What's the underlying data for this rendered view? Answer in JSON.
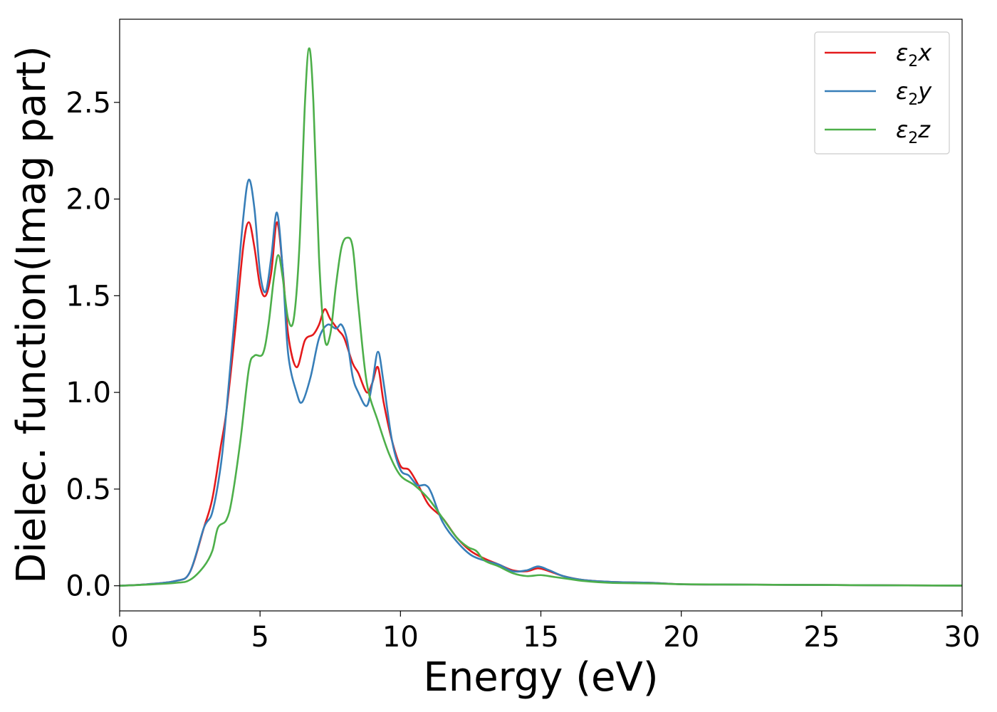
{
  "chart_data": {
    "type": "line",
    "xlabel": "Energy (eV)",
    "ylabel": "Dielec. function(Imag part)",
    "xlim": [
      0,
      30
    ],
    "ylim": [
      -0.13,
      2.93
    ],
    "xticks": [
      0,
      5,
      10,
      15,
      20,
      25,
      30
    ],
    "yticks": [
      0.0,
      0.5,
      1.0,
      1.5,
      2.0,
      2.5
    ],
    "xtick_labels": [
      "0",
      "5",
      "10",
      "15",
      "20",
      "25",
      "30"
    ],
    "ytick_labels": [
      "0.0",
      "0.5",
      "1.0",
      "1.5",
      "2.0",
      "2.5"
    ],
    "grid": false,
    "legend_position": "top-right",
    "series": [
      {
        "name": "ε2x",
        "legend": {
          "base": "ε",
          "sub": "2",
          "var": "x"
        },
        "color": "#e41a1c",
        "points": [
          [
            0,
            0
          ],
          [
            1,
            0.008
          ],
          [
            2,
            0.025
          ],
          [
            2.5,
            0.07
          ],
          [
            3,
            0.3
          ],
          [
            3.3,
            0.45
          ],
          [
            3.6,
            0.72
          ],
          [
            3.8,
            0.9
          ],
          [
            4.1,
            1.3
          ],
          [
            4.4,
            1.75
          ],
          [
            4.6,
            1.88
          ],
          [
            4.8,
            1.75
          ],
          [
            5.0,
            1.55
          ],
          [
            5.2,
            1.5
          ],
          [
            5.4,
            1.62
          ],
          [
            5.6,
            1.88
          ],
          [
            5.8,
            1.65
          ],
          [
            6.0,
            1.3
          ],
          [
            6.3,
            1.13
          ],
          [
            6.6,
            1.27
          ],
          [
            6.9,
            1.3
          ],
          [
            7.1,
            1.35
          ],
          [
            7.3,
            1.43
          ],
          [
            7.5,
            1.38
          ],
          [
            7.8,
            1.32
          ],
          [
            8.0,
            1.28
          ],
          [
            8.3,
            1.15
          ],
          [
            8.5,
            1.1
          ],
          [
            8.8,
            1.0
          ],
          [
            9.0,
            1.05
          ],
          [
            9.2,
            1.13
          ],
          [
            9.4,
            0.95
          ],
          [
            9.7,
            0.75
          ],
          [
            10.0,
            0.62
          ],
          [
            10.3,
            0.6
          ],
          [
            10.6,
            0.53
          ],
          [
            11.0,
            0.42
          ],
          [
            11.5,
            0.35
          ],
          [
            12.0,
            0.25
          ],
          [
            12.5,
            0.18
          ],
          [
            13.0,
            0.14
          ],
          [
            13.5,
            0.11
          ],
          [
            14.0,
            0.08
          ],
          [
            14.5,
            0.075
          ],
          [
            14.9,
            0.09
          ],
          [
            15.3,
            0.075
          ],
          [
            15.8,
            0.05
          ],
          [
            16.5,
            0.03
          ],
          [
            17.5,
            0.02
          ],
          [
            19,
            0.015
          ],
          [
            20,
            0.008
          ],
          [
            22,
            0.006
          ],
          [
            25,
            0.004
          ],
          [
            28,
            0.002
          ],
          [
            30,
            0.001
          ]
        ]
      },
      {
        "name": "ε2y",
        "legend": {
          "base": "ε",
          "sub": "2",
          "var": "y"
        },
        "color": "#377eb8",
        "points": [
          [
            0,
            0
          ],
          [
            1,
            0.008
          ],
          [
            2,
            0.025
          ],
          [
            2.5,
            0.07
          ],
          [
            3,
            0.3
          ],
          [
            3.3,
            0.38
          ],
          [
            3.6,
            0.62
          ],
          [
            3.8,
            0.9
          ],
          [
            4.1,
            1.4
          ],
          [
            4.4,
            1.9
          ],
          [
            4.6,
            2.1
          ],
          [
            4.8,
            1.95
          ],
          [
            5.0,
            1.62
          ],
          [
            5.2,
            1.52
          ],
          [
            5.4,
            1.7
          ],
          [
            5.6,
            1.93
          ],
          [
            5.8,
            1.65
          ],
          [
            6.0,
            1.2
          ],
          [
            6.3,
            1.0
          ],
          [
            6.5,
            0.95
          ],
          [
            6.8,
            1.08
          ],
          [
            7.1,
            1.28
          ],
          [
            7.4,
            1.35
          ],
          [
            7.7,
            1.33
          ],
          [
            7.9,
            1.35
          ],
          [
            8.1,
            1.27
          ],
          [
            8.3,
            1.08
          ],
          [
            8.5,
            1.0
          ],
          [
            8.8,
            0.93
          ],
          [
            9.0,
            1.05
          ],
          [
            9.2,
            1.21
          ],
          [
            9.4,
            1.05
          ],
          [
            9.7,
            0.75
          ],
          [
            10.0,
            0.6
          ],
          [
            10.3,
            0.57
          ],
          [
            10.6,
            0.52
          ],
          [
            10.9,
            0.52
          ],
          [
            11.1,
            0.48
          ],
          [
            11.5,
            0.33
          ],
          [
            12.0,
            0.23
          ],
          [
            12.5,
            0.16
          ],
          [
            13.0,
            0.13
          ],
          [
            13.5,
            0.11
          ],
          [
            14.0,
            0.075
          ],
          [
            14.5,
            0.08
          ],
          [
            14.9,
            0.1
          ],
          [
            15.3,
            0.08
          ],
          [
            15.8,
            0.05
          ],
          [
            16.5,
            0.03
          ],
          [
            17.5,
            0.02
          ],
          [
            19,
            0.015
          ],
          [
            20,
            0.008
          ],
          [
            22,
            0.006
          ],
          [
            25,
            0.004
          ],
          [
            28,
            0.002
          ],
          [
            30,
            0.001
          ]
        ]
      },
      {
        "name": "ε2z",
        "legend": {
          "base": "ε",
          "sub": "2",
          "var": "z"
        },
        "color": "#4daf4a",
        "points": [
          [
            0,
            0
          ],
          [
            1,
            0.006
          ],
          [
            2,
            0.015
          ],
          [
            2.5,
            0.03
          ],
          [
            3,
            0.1
          ],
          [
            3.3,
            0.18
          ],
          [
            3.5,
            0.3
          ],
          [
            3.8,
            0.34
          ],
          [
            4.0,
            0.45
          ],
          [
            4.3,
            0.75
          ],
          [
            4.6,
            1.12
          ],
          [
            4.8,
            1.19
          ],
          [
            5.1,
            1.2
          ],
          [
            5.3,
            1.35
          ],
          [
            5.5,
            1.6
          ],
          [
            5.65,
            1.71
          ],
          [
            5.8,
            1.6
          ],
          [
            6.0,
            1.38
          ],
          [
            6.2,
            1.38
          ],
          [
            6.4,
            1.75
          ],
          [
            6.6,
            2.5
          ],
          [
            6.75,
            2.78
          ],
          [
            6.9,
            2.5
          ],
          [
            7.1,
            1.7
          ],
          [
            7.3,
            1.28
          ],
          [
            7.5,
            1.3
          ],
          [
            7.7,
            1.55
          ],
          [
            7.9,
            1.75
          ],
          [
            8.1,
            1.8
          ],
          [
            8.3,
            1.75
          ],
          [
            8.5,
            1.45
          ],
          [
            8.8,
            1.05
          ],
          [
            9.2,
            0.85
          ],
          [
            9.6,
            0.68
          ],
          [
            10.0,
            0.57
          ],
          [
            10.5,
            0.52
          ],
          [
            11.0,
            0.45
          ],
          [
            11.5,
            0.35
          ],
          [
            12.0,
            0.25
          ],
          [
            12.4,
            0.2
          ],
          [
            12.7,
            0.18
          ],
          [
            13.0,
            0.13
          ],
          [
            13.5,
            0.1
          ],
          [
            14.0,
            0.065
          ],
          [
            14.5,
            0.05
          ],
          [
            15.0,
            0.055
          ],
          [
            15.5,
            0.045
          ],
          [
            16.0,
            0.035
          ],
          [
            16.5,
            0.025
          ],
          [
            17.5,
            0.015
          ],
          [
            19,
            0.012
          ],
          [
            20,
            0.008
          ],
          [
            22,
            0.006
          ],
          [
            25,
            0.004
          ],
          [
            28,
            0.002
          ],
          [
            30,
            0.001
          ]
        ]
      }
    ]
  }
}
